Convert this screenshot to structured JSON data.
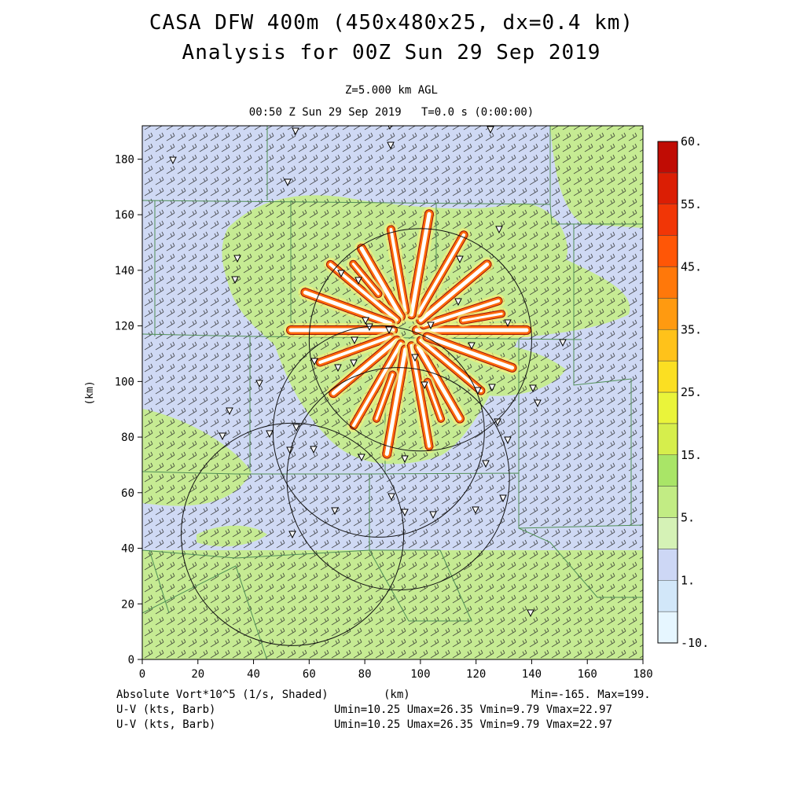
{
  "header": {
    "title_line1": "CASA DFW 400m (450x480x25, dx=0.4 km)",
    "title_line2": "Analysis for 00Z Sun 29 Sep 2019",
    "level": "Z=5.000 km AGL",
    "valid_time": "00:50 Z Sun 29 Sep 2019",
    "elapsed": "T=0.0 s (0:00:00)"
  },
  "footer": {
    "field_label": "Absolute Vort*10^5 (1/s, Shaded)",
    "xunit": "(km)",
    "minmax": "Min=-165. Max=199.",
    "barb1_label": "U-V (kts, Barb)",
    "barb1_stats": "Umin=10.25 Umax=26.35 Vmin=9.79 Vmax=22.97",
    "barb2_label": "U-V (kts, Barb)",
    "barb2_stats": "Umin=10.25 Umax=26.35 Vmin=9.79 Vmax=22.97"
  },
  "chart_data": {
    "type": "heatmap",
    "field": "Absolute Vort*10^5",
    "ylabel": "(km)",
    "xlim": [
      0,
      180
    ],
    "ylim": [
      0,
      192
    ],
    "x_ticks": [
      0,
      20,
      40,
      60,
      80,
      100,
      120,
      140,
      160,
      180
    ],
    "y_ticks": [
      0,
      20,
      40,
      60,
      80,
      100,
      120,
      140,
      160,
      180
    ],
    "colorbar": {
      "labels": [
        "-10.",
        "1.",
        "5.",
        "15.",
        "25.",
        "35.",
        "45.",
        "55.",
        "60."
      ],
      "colors": [
        "#e6f6ff",
        "#d2e7f9",
        "#cdd7f5",
        "#d5f2b6",
        "#c2ec84",
        "#a9e567",
        "#d6ee4c",
        "#eaf43a",
        "#fbdf22",
        "#ffc21a",
        "#ff9a10",
        "#ff780a",
        "#ff5606",
        "#f13606",
        "#db1e04",
        "#c00c04"
      ]
    },
    "range_rings": [
      {
        "center": [
          100,
          115
        ],
        "radius": 40
      },
      {
        "center": [
          85,
          82
        ],
        "radius": 38
      },
      {
        "center": [
          92,
          65
        ],
        "radius": 40
      },
      {
        "center": [
          54,
          45
        ],
        "radius": 40
      }
    ],
    "wind_barbs": {
      "units": "kts",
      "direction": "southwesterly"
    },
    "colors": {
      "background_light_blue": "#cfd9f4",
      "green_shade": "#c6eb93",
      "county_lines": "#4f8f55",
      "vortex_outline": "#9c1005",
      "vortex_fill": "#ff6a0c"
    }
  }
}
